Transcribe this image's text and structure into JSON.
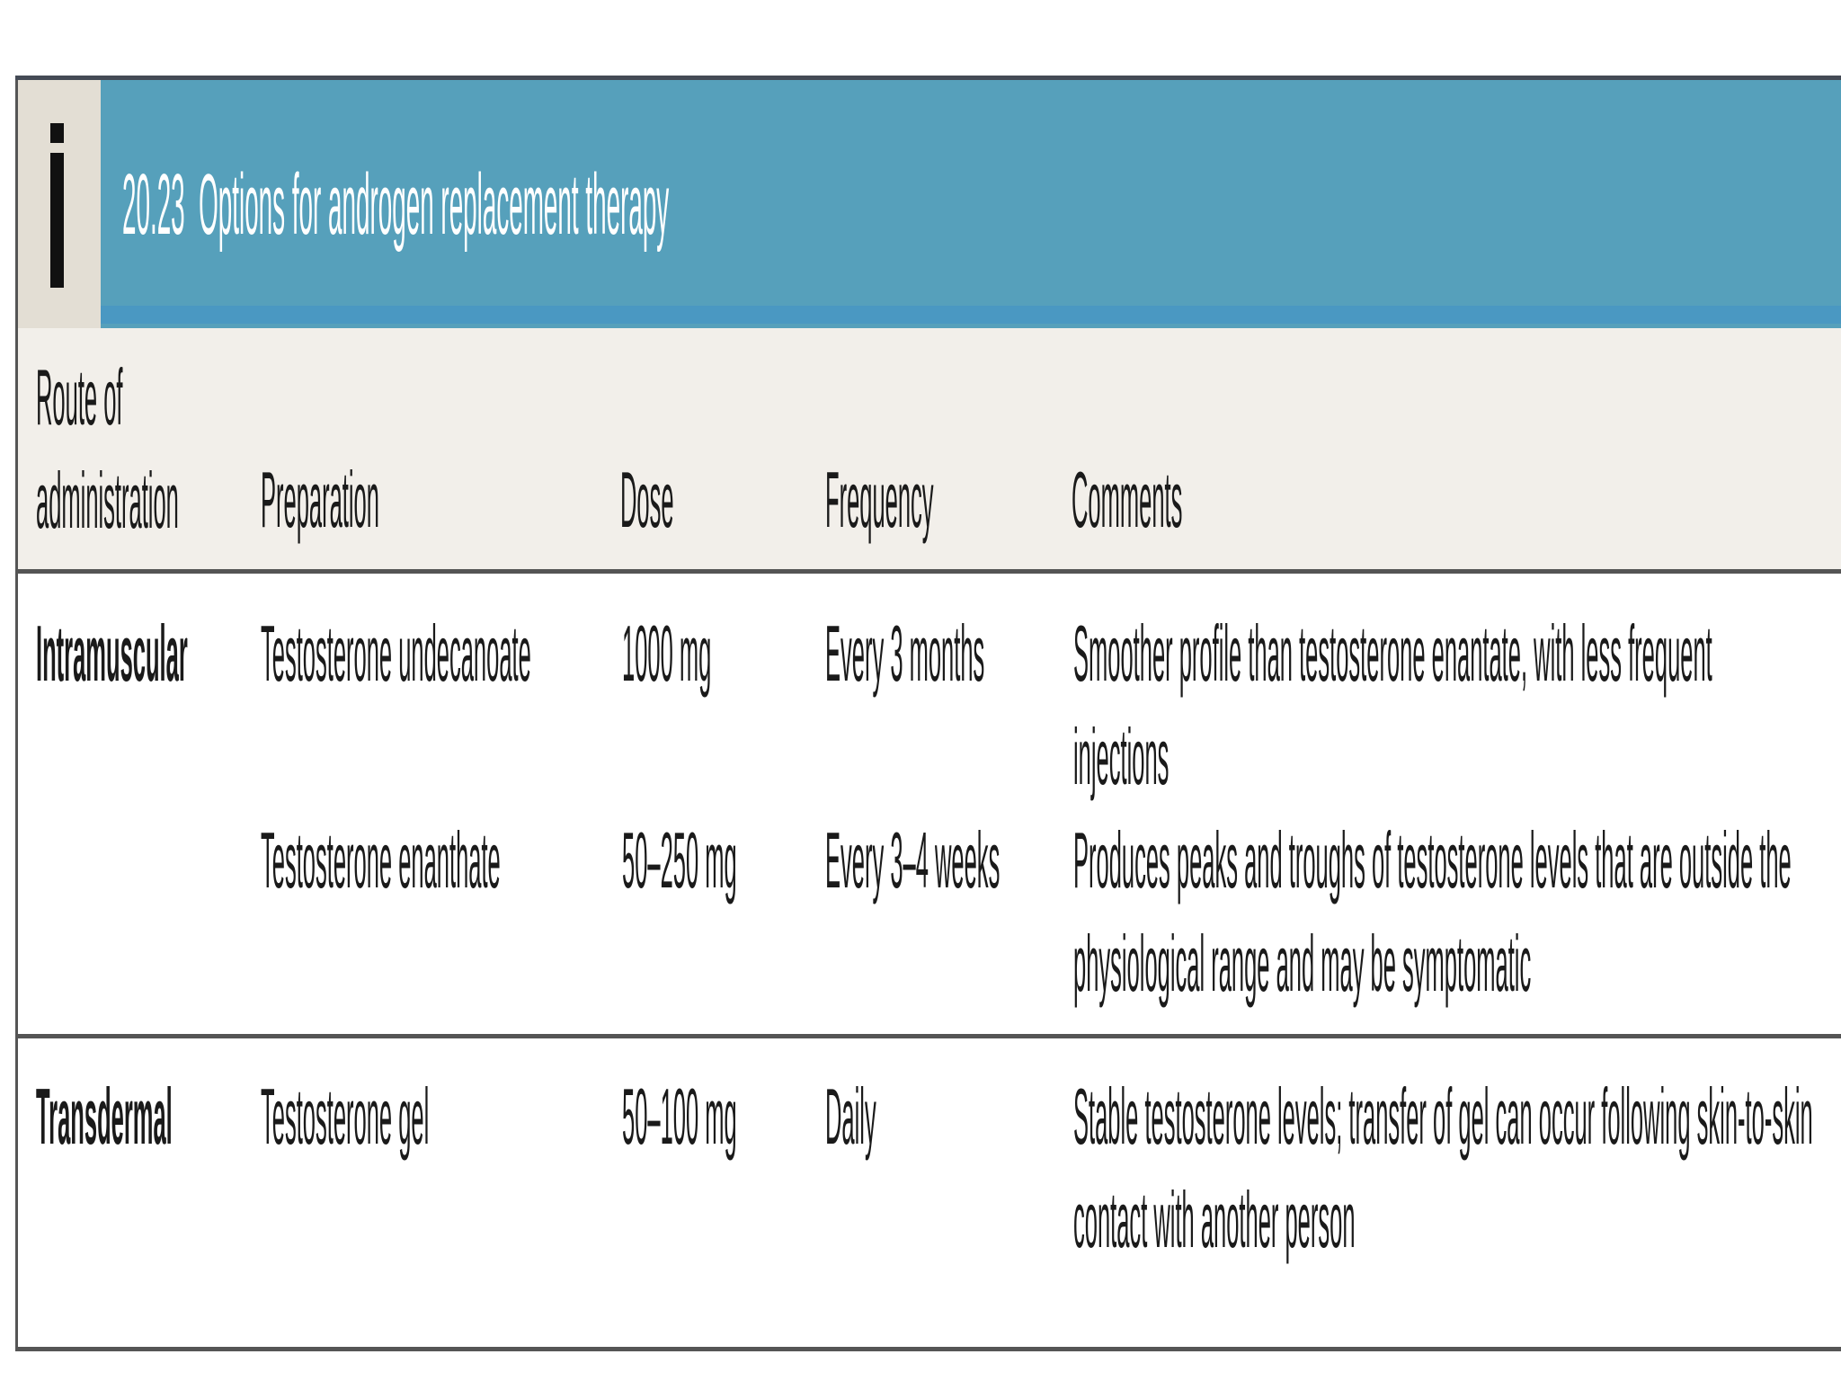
{
  "box": {
    "icon": "info-i-icon",
    "number": "20.23",
    "title": "Options for androgen replacement therapy",
    "banner_color": "#56a0bb"
  },
  "table": {
    "headers": [
      "Route of administration",
      "Preparation",
      "Dose",
      "Frequency",
      "Comments"
    ],
    "groups": [
      {
        "route": "Intramuscular",
        "rows": [
          {
            "preparation": "Testosterone undecanoate",
            "dose": "1000 mg",
            "frequency": "Every 3 months",
            "comments": "Smoother profile than testosterone enantate, with less frequent injections"
          },
          {
            "preparation": "Testosterone enanthate",
            "dose": "50–250 mg",
            "frequency": "Every 3–4 weeks",
            "comments": "Produces peaks and troughs of testosterone levels that are outside the physiological range and may be symptomatic"
          }
        ]
      },
      {
        "route": "Transdermal",
        "rows": [
          {
            "preparation": "Testosterone gel",
            "dose": "50–100 mg",
            "frequency": "Daily",
            "comments": "Stable testosterone levels; transfer of gel can occur following skin-to-skin contact with another person"
          }
        ]
      }
    ]
  }
}
